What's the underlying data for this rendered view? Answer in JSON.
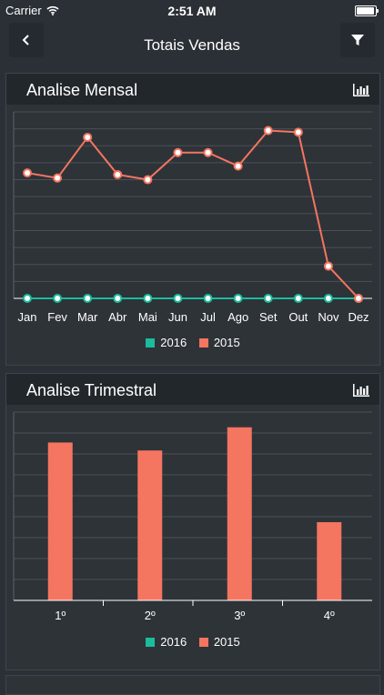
{
  "status_bar": {
    "carrier": "Carrier",
    "time": "2:51 AM"
  },
  "navbar": {
    "title": "Totais Vendas",
    "back_icon": "chevron-left-icon",
    "filter_icon": "filter-icon"
  },
  "colors": {
    "series_2016": "#1abc9c",
    "series_2015": "#f47560",
    "background": "#2b3036",
    "grid": "#4a5057"
  },
  "monthly": {
    "title": "Analise Mensal",
    "legend": [
      "2016",
      "2015"
    ],
    "chart_data": {
      "type": "line",
      "categories": [
        "Jan",
        "Fev",
        "Mar",
        "Abr",
        "Mai",
        "Jun",
        "Jul",
        "Ago",
        "Set",
        "Out",
        "Nov",
        "Dez"
      ],
      "series": [
        {
          "name": "2016",
          "values": [
            0,
            0,
            0,
            0,
            0,
            0,
            0,
            0,
            0,
            0,
            0,
            0
          ]
        },
        {
          "name": "2015",
          "values": [
            74,
            71,
            95,
            73,
            70,
            86,
            86,
            78,
            99,
            98,
            19,
            0
          ]
        }
      ],
      "ylim": [
        0,
        110
      ],
      "grid": true,
      "legend_position": "bottom"
    }
  },
  "quarterly": {
    "title": "Analise Trimestral",
    "legend": [
      "2016",
      "2015"
    ],
    "chart_data": {
      "type": "bar",
      "categories": [
        "1º",
        "2º",
        "3º",
        "4º"
      ],
      "series": [
        {
          "name": "2016",
          "values": [
            0,
            0,
            0,
            0
          ]
        },
        {
          "name": "2015",
          "values": [
            218,
            207,
            239,
            108
          ]
        }
      ],
      "ylim": [
        0,
        260
      ],
      "grid": true,
      "legend_position": "bottom"
    }
  }
}
